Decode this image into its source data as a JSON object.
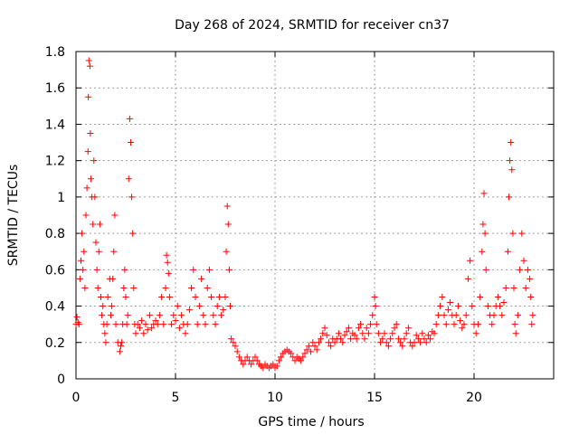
{
  "chart_data": {
    "type": "scatter",
    "title": "Day 268 of 2024, SRMTID for receiver cn37",
    "xlabel": "GPS time / hours",
    "ylabel": "SRMTID / TECUs",
    "xlim": [
      0,
      24
    ],
    "ylim": [
      0,
      1.8
    ],
    "xticks": [
      0,
      5,
      10,
      15,
      20
    ],
    "xtick_labels": [
      "0",
      "5",
      "10",
      "15",
      "20"
    ],
    "yticks": [
      0,
      0.2,
      0.4,
      0.6,
      0.8,
      1,
      1.2,
      1.4,
      1.6,
      1.8
    ],
    "ytick_labels": [
      "0",
      "0.2",
      "0.4",
      "0.6",
      "0.8",
      "1",
      "1.2",
      "1.4",
      "1.6",
      "1.8"
    ],
    "grid": true,
    "marker": "+",
    "color": "#ff0000",
    "series": [
      {
        "name": "SRMTID",
        "points": [
          [
            0.0,
            0.3
          ],
          [
            0.05,
            0.34
          ],
          [
            0.1,
            0.31
          ],
          [
            0.15,
            0.3
          ],
          [
            0.2,
            0.55
          ],
          [
            0.25,
            0.65
          ],
          [
            0.3,
            0.8
          ],
          [
            0.35,
            0.6
          ],
          [
            0.4,
            0.7
          ],
          [
            0.45,
            0.5
          ],
          [
            0.5,
            0.9
          ],
          [
            0.55,
            1.05
          ],
          [
            0.6,
            1.25
          ],
          [
            0.62,
            1.55
          ],
          [
            0.65,
            1.75
          ],
          [
            0.7,
            1.72
          ],
          [
            0.72,
            1.35
          ],
          [
            0.75,
            1.1
          ],
          [
            0.8,
            1.0
          ],
          [
            0.85,
            0.85
          ],
          [
            0.9,
            1.2
          ],
          [
            0.95,
            1.0
          ],
          [
            1.0,
            0.75
          ],
          [
            1.05,
            0.6
          ],
          [
            1.1,
            0.5
          ],
          [
            1.15,
            0.7
          ],
          [
            1.2,
            0.85
          ],
          [
            1.25,
            0.45
          ],
          [
            1.3,
            0.35
          ],
          [
            1.35,
            0.4
          ],
          [
            1.4,
            0.3
          ],
          [
            1.45,
            0.25
          ],
          [
            1.5,
            0.2
          ],
          [
            1.55,
            0.3
          ],
          [
            1.6,
            0.45
          ],
          [
            1.7,
            0.55
          ],
          [
            1.75,
            0.35
          ],
          [
            1.8,
            0.4
          ],
          [
            1.85,
            0.55
          ],
          [
            1.9,
            0.7
          ],
          [
            1.95,
            0.9
          ],
          [
            2.0,
            0.3
          ],
          [
            2.1,
            0.2
          ],
          [
            2.2,
            0.15
          ],
          [
            2.25,
            0.18
          ],
          [
            2.3,
            0.2
          ],
          [
            2.35,
            0.3
          ],
          [
            2.4,
            0.5
          ],
          [
            2.45,
            0.6
          ],
          [
            2.5,
            0.45
          ],
          [
            2.55,
            0.3
          ],
          [
            2.6,
            0.35
          ],
          [
            2.65,
            1.1
          ],
          [
            2.7,
            1.43
          ],
          [
            2.75,
            1.3
          ],
          [
            2.8,
            1.0
          ],
          [
            2.85,
            0.8
          ],
          [
            2.9,
            0.5
          ],
          [
            2.95,
            0.3
          ],
          [
            3.0,
            0.25
          ],
          [
            3.1,
            0.3
          ],
          [
            3.2,
            0.28
          ],
          [
            3.3,
            0.32
          ],
          [
            3.4,
            0.25
          ],
          [
            3.5,
            0.3
          ],
          [
            3.6,
            0.27
          ],
          [
            3.7,
            0.35
          ],
          [
            3.8,
            0.28
          ],
          [
            3.9,
            0.3
          ],
          [
            4.0,
            0.32
          ],
          [
            4.1,
            0.3
          ],
          [
            4.2,
            0.35
          ],
          [
            4.3,
            0.45
          ],
          [
            4.4,
            0.3
          ],
          [
            4.5,
            0.5
          ],
          [
            4.55,
            0.68
          ],
          [
            4.6,
            0.64
          ],
          [
            4.65,
            0.58
          ],
          [
            4.7,
            0.45
          ],
          [
            4.8,
            0.3
          ],
          [
            4.9,
            0.35
          ],
          [
            5.0,
            0.32
          ],
          [
            5.1,
            0.4
          ],
          [
            5.2,
            0.28
          ],
          [
            5.3,
            0.35
          ],
          [
            5.4,
            0.3
          ],
          [
            5.5,
            0.25
          ],
          [
            5.6,
            0.3
          ],
          [
            5.7,
            0.38
          ],
          [
            5.8,
            0.5
          ],
          [
            5.9,
            0.6
          ],
          [
            6.0,
            0.45
          ],
          [
            6.1,
            0.3
          ],
          [
            6.2,
            0.4
          ],
          [
            6.3,
            0.55
          ],
          [
            6.4,
            0.35
          ],
          [
            6.5,
            0.3
          ],
          [
            6.6,
            0.5
          ],
          [
            6.7,
            0.6
          ],
          [
            6.8,
            0.45
          ],
          [
            6.9,
            0.35
          ],
          [
            7.0,
            0.3
          ],
          [
            7.1,
            0.4
          ],
          [
            7.2,
            0.45
          ],
          [
            7.3,
            0.35
          ],
          [
            7.4,
            0.38
          ],
          [
            7.5,
            0.45
          ],
          [
            7.55,
            0.7
          ],
          [
            7.6,
            0.95
          ],
          [
            7.65,
            0.85
          ],
          [
            7.7,
            0.6
          ],
          [
            7.75,
            0.4
          ],
          [
            7.8,
            0.22
          ],
          [
            7.9,
            0.2
          ],
          [
            8.0,
            0.18
          ],
          [
            8.1,
            0.15
          ],
          [
            8.2,
            0.12
          ],
          [
            8.3,
            0.1
          ],
          [
            8.4,
            0.08
          ],
          [
            8.5,
            0.1
          ],
          [
            8.6,
            0.12
          ],
          [
            8.7,
            0.1
          ],
          [
            8.8,
            0.08
          ],
          [
            8.9,
            0.1
          ],
          [
            9.0,
            0.12
          ],
          [
            9.1,
            0.1
          ],
          [
            9.2,
            0.08
          ],
          [
            9.3,
            0.07
          ],
          [
            9.4,
            0.06
          ],
          [
            9.5,
            0.08
          ],
          [
            9.6,
            0.07
          ],
          [
            9.7,
            0.06
          ],
          [
            9.8,
            0.07
          ],
          [
            9.9,
            0.08
          ],
          [
            10.0,
            0.06
          ],
          [
            10.1,
            0.07
          ],
          [
            10.2,
            0.1
          ],
          [
            10.3,
            0.12
          ],
          [
            10.4,
            0.14
          ],
          [
            10.5,
            0.15
          ],
          [
            10.6,
            0.16
          ],
          [
            10.7,
            0.15
          ],
          [
            10.8,
            0.14
          ],
          [
            10.9,
            0.12
          ],
          [
            11.0,
            0.1
          ],
          [
            11.1,
            0.12
          ],
          [
            11.2,
            0.11
          ],
          [
            11.3,
            0.1
          ],
          [
            11.4,
            0.12
          ],
          [
            11.5,
            0.14
          ],
          [
            11.6,
            0.16
          ],
          [
            11.7,
            0.18
          ],
          [
            11.8,
            0.15
          ],
          [
            11.9,
            0.2
          ],
          [
            12.0,
            0.18
          ],
          [
            12.1,
            0.16
          ],
          [
            12.2,
            0.2
          ],
          [
            12.3,
            0.22
          ],
          [
            12.4,
            0.25
          ],
          [
            12.5,
            0.28
          ],
          [
            12.6,
            0.24
          ],
          [
            12.7,
            0.2
          ],
          [
            12.8,
            0.18
          ],
          [
            12.9,
            0.22
          ],
          [
            13.0,
            0.2
          ],
          [
            13.1,
            0.22
          ],
          [
            13.2,
            0.25
          ],
          [
            13.3,
            0.22
          ],
          [
            13.4,
            0.2
          ],
          [
            13.5,
            0.24
          ],
          [
            13.6,
            0.26
          ],
          [
            13.7,
            0.28
          ],
          [
            13.8,
            0.22
          ],
          [
            13.9,
            0.25
          ],
          [
            14.0,
            0.24
          ],
          [
            14.1,
            0.22
          ],
          [
            14.2,
            0.28
          ],
          [
            14.3,
            0.3
          ],
          [
            14.4,
            0.25
          ],
          [
            14.5,
            0.22
          ],
          [
            14.6,
            0.28
          ],
          [
            14.7,
            0.25
          ],
          [
            14.8,
            0.3
          ],
          [
            14.9,
            0.35
          ],
          [
            15.0,
            0.45
          ],
          [
            15.05,
            0.4
          ],
          [
            15.1,
            0.3
          ],
          [
            15.2,
            0.25
          ],
          [
            15.3,
            0.2
          ],
          [
            15.4,
            0.22
          ],
          [
            15.5,
            0.25
          ],
          [
            15.6,
            0.2
          ],
          [
            15.7,
            0.18
          ],
          [
            15.8,
            0.22
          ],
          [
            15.9,
            0.25
          ],
          [
            16.0,
            0.28
          ],
          [
            16.1,
            0.3
          ],
          [
            16.2,
            0.22
          ],
          [
            16.3,
            0.2
          ],
          [
            16.4,
            0.18
          ],
          [
            16.5,
            0.22
          ],
          [
            16.6,
            0.25
          ],
          [
            16.7,
            0.28
          ],
          [
            16.8,
            0.2
          ],
          [
            16.9,
            0.18
          ],
          [
            17.0,
            0.2
          ],
          [
            17.1,
            0.24
          ],
          [
            17.2,
            0.22
          ],
          [
            17.3,
            0.2
          ],
          [
            17.4,
            0.25
          ],
          [
            17.5,
            0.22
          ],
          [
            17.6,
            0.2
          ],
          [
            17.7,
            0.24
          ],
          [
            17.8,
            0.22
          ],
          [
            17.9,
            0.26
          ],
          [
            18.0,
            0.25
          ],
          [
            18.1,
            0.3
          ],
          [
            18.2,
            0.35
          ],
          [
            18.3,
            0.4
          ],
          [
            18.4,
            0.45
          ],
          [
            18.5,
            0.35
          ],
          [
            18.6,
            0.3
          ],
          [
            18.7,
            0.38
          ],
          [
            18.8,
            0.42
          ],
          [
            18.9,
            0.35
          ],
          [
            19.0,
            0.3
          ],
          [
            19.1,
            0.35
          ],
          [
            19.2,
            0.4
          ],
          [
            19.3,
            0.32
          ],
          [
            19.4,
            0.28
          ],
          [
            19.5,
            0.3
          ],
          [
            19.6,
            0.35
          ],
          [
            19.7,
            0.55
          ],
          [
            19.8,
            0.65
          ],
          [
            19.9,
            0.4
          ],
          [
            20.0,
            0.3
          ],
          [
            20.1,
            0.25
          ],
          [
            20.2,
            0.3
          ],
          [
            20.3,
            0.45
          ],
          [
            20.4,
            0.7
          ],
          [
            20.45,
            0.85
          ],
          [
            20.5,
            1.02
          ],
          [
            20.55,
            0.8
          ],
          [
            20.6,
            0.6
          ],
          [
            20.7,
            0.4
          ],
          [
            20.8,
            0.35
          ],
          [
            20.9,
            0.3
          ],
          [
            21.0,
            0.35
          ],
          [
            21.1,
            0.4
          ],
          [
            21.2,
            0.45
          ],
          [
            21.3,
            0.4
          ],
          [
            21.4,
            0.35
          ],
          [
            21.5,
            0.42
          ],
          [
            21.6,
            0.5
          ],
          [
            21.7,
            0.7
          ],
          [
            21.75,
            1.0
          ],
          [
            21.8,
            1.2
          ],
          [
            21.85,
            1.3
          ],
          [
            21.9,
            1.15
          ],
          [
            21.95,
            0.8
          ],
          [
            22.0,
            0.5
          ],
          [
            22.05,
            0.3
          ],
          [
            22.1,
            0.25
          ],
          [
            22.2,
            0.35
          ],
          [
            22.3,
            0.6
          ],
          [
            22.4,
            0.8
          ],
          [
            22.5,
            0.65
          ],
          [
            22.6,
            0.5
          ],
          [
            22.7,
            0.6
          ],
          [
            22.8,
            0.55
          ],
          [
            22.85,
            0.45
          ],
          [
            22.9,
            0.3
          ],
          [
            22.95,
            0.35
          ]
        ]
      }
    ]
  }
}
